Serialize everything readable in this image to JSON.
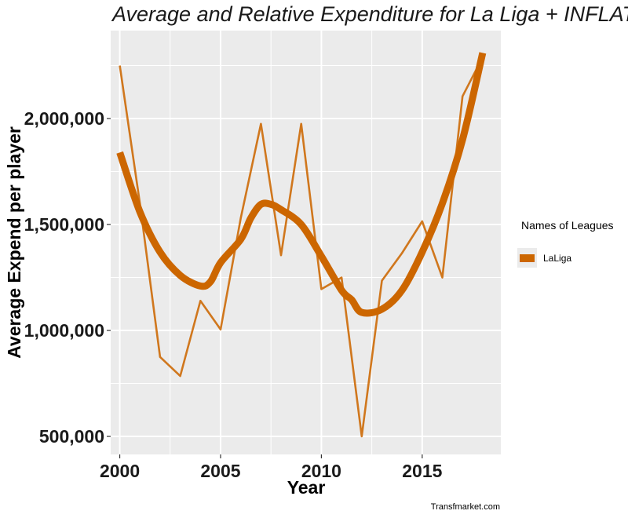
{
  "chart_data": {
    "type": "line",
    "title": "Average and Relative  Expenditure for La Liga + INFLAT",
    "xlabel": "Year",
    "ylabel": "Average Expend  per player",
    "x": [
      2000,
      2001,
      2002,
      2003,
      2004,
      2005,
      2006,
      2007,
      2008,
      2009,
      2010,
      2011,
      2012,
      2013,
      2014,
      2015,
      2016,
      2017,
      2018
    ],
    "series": [
      {
        "name": "LaLiga",
        "values": [
          2250000,
          1600000,
          875000,
          785000,
          1140000,
          1005000,
          1530000,
          1975000,
          1355000,
          1975000,
          1195000,
          1250000,
          500000,
          1235000,
          1365000,
          1515000,
          1250000,
          2105000,
          2290000
        ]
      }
    ],
    "smooth": {
      "x": [
        2000,
        2001,
        2002,
        2003,
        2004,
        2004.5,
        2005,
        2006,
        2006.5,
        2007,
        2007.5,
        2008,
        2009,
        2010,
        2011,
        2011.5,
        2012,
        2013,
        2014,
        2015,
        2016,
        2017,
        2018
      ],
      "values": [
        1840000,
        1560000,
        1370000,
        1260000,
        1210000,
        1230000,
        1320000,
        1430000,
        1530000,
        1595000,
        1595000,
        1570000,
        1500000,
        1350000,
        1190000,
        1145000,
        1085000,
        1100000,
        1190000,
        1370000,
        1600000,
        1900000,
        2310000
      ]
    },
    "xlim": [
      1999.55,
      2018.9
    ],
    "ylim": [
      415000,
      2415000
    ],
    "x_ticks": [
      "2000",
      "2005",
      "2010",
      "2015"
    ],
    "y_ticks": [
      "500,000",
      "1,000,000",
      "1,500,000",
      "2,000,000"
    ],
    "grid": true,
    "legend": {
      "title": "Names of Leagues",
      "placement": "right",
      "items": [
        "LaLiga"
      ]
    },
    "caption": "Transfmarket.com",
    "colors": {
      "panel": "#ebebeb",
      "grid": "#ffffff",
      "line": "#cc6600",
      "background": "#ffffff"
    }
  }
}
